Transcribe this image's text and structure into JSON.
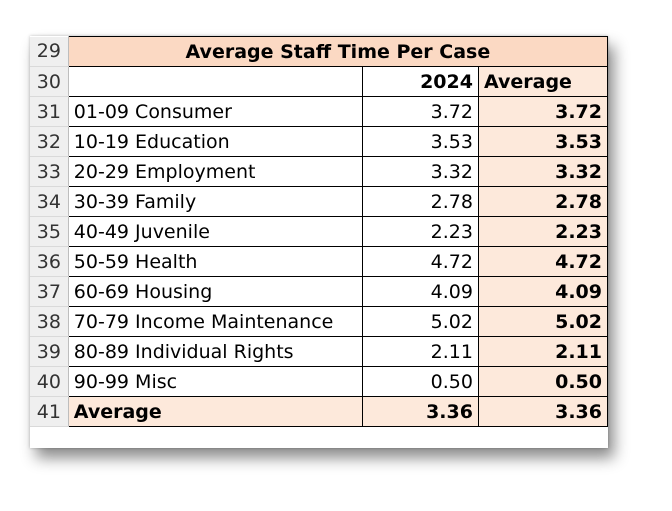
{
  "sheet": {
    "title": "Average Staff Time Per Case",
    "title_row": "29",
    "header_row": "30",
    "columns": {
      "year": "2024",
      "average": "Average"
    },
    "rows": [
      {
        "row": "31",
        "category": "01-09 Consumer",
        "year": "3.72",
        "average": "3.72"
      },
      {
        "row": "32",
        "category": "10-19 Education",
        "year": "3.53",
        "average": "3.53"
      },
      {
        "row": "33",
        "category": "20-29 Employment",
        "year": "3.32",
        "average": "3.32"
      },
      {
        "row": "34",
        "category": "30-39 Family",
        "year": "2.78",
        "average": "2.78"
      },
      {
        "row": "35",
        "category": "40-49 Juvenile",
        "year": "2.23",
        "average": "2.23"
      },
      {
        "row": "36",
        "category": "50-59 Health",
        "year": "4.72",
        "average": "4.72"
      },
      {
        "row": "37",
        "category": "60-69 Housing",
        "year": "4.09",
        "average": "4.09"
      },
      {
        "row": "38",
        "category": "70-79 Income Maintenance",
        "year": "5.02",
        "average": "5.02"
      },
      {
        "row": "39",
        "category": "80-89 Individual Rights",
        "year": "2.11",
        "average": "2.11"
      },
      {
        "row": "40",
        "category": "90-99 Misc",
        "year": "0.50",
        "average": "0.50"
      }
    ],
    "footer": {
      "row": "41",
      "label": "Average",
      "year": "3.36",
      "average": "3.36"
    }
  },
  "colors": {
    "title_fill": "#fbd9c3",
    "average_fill": "#fde9db",
    "row_header_fill": "#efefef"
  }
}
